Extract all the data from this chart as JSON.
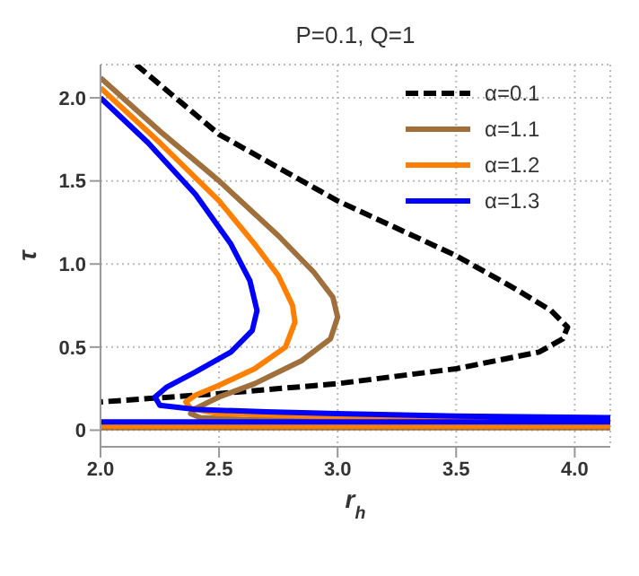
{
  "chart_data": {
    "type": "line",
    "title": "P=0.1, Q=1",
    "xlabel": "r$_{h}$",
    "ylabel": "τ",
    "xlim": [
      2.0,
      4.15
    ],
    "ylim": [
      -0.1,
      2.2
    ],
    "xticks": [
      {
        "value": 2,
        "label": "2.0"
      },
      2.5,
      {
        "value": 3,
        "label": "3.0"
      },
      3.5,
      {
        "value": 4,
        "label": "4.0"
      }
    ],
    "yticks": [
      0,
      0.5,
      {
        "value": 1,
        "label": "1.0"
      },
      1.5,
      {
        "value": 2,
        "label": "2.0"
      }
    ],
    "grid": true,
    "legend": "top right",
    "marker": "none",
    "series": [
      {
        "name": "α=0.1",
        "color": "#000000",
        "line_style": "dashed",
        "x": [
          2.15,
          2.5,
          3.0,
          3.5,
          3.75,
          3.9,
          3.97,
          3.95,
          3.85,
          3.5,
          3.0,
          2.5,
          2.0
        ],
        "values": [
          2.2,
          1.78,
          1.38,
          1.05,
          0.85,
          0.72,
          0.62,
          0.55,
          0.47,
          0.37,
          0.28,
          0.22,
          0.17
        ]
      },
      {
        "name": "α=1.1",
        "color": "#a0703c",
        "line_style": "solid",
        "x": [
          2.0,
          2.25,
          2.5,
          2.75,
          2.9,
          2.98,
          3.0,
          2.97,
          2.85,
          2.65,
          2.5,
          2.4,
          2.38,
          2.42,
          2.6,
          3.0,
          3.5,
          4.15,
          null,
          2.0,
          4.15
        ],
        "values": [
          2.12,
          1.8,
          1.5,
          1.17,
          0.95,
          0.8,
          0.68,
          0.55,
          0.42,
          0.28,
          0.2,
          0.13,
          0.1,
          0.075,
          0.065,
          0.06,
          0.055,
          0.05,
          null,
          0.015,
          0.015
        ]
      },
      {
        "name": "α=1.2",
        "color": "#ff8000",
        "line_style": "solid",
        "x": [
          2.0,
          2.25,
          2.5,
          2.65,
          2.75,
          2.81,
          2.82,
          2.78,
          2.65,
          2.5,
          2.4,
          2.36,
          2.38,
          2.5,
          3.0,
          3.5,
          4.15,
          null,
          2.0,
          4.15
        ],
        "values": [
          2.06,
          1.73,
          1.38,
          1.12,
          0.93,
          0.75,
          0.65,
          0.5,
          0.37,
          0.27,
          0.21,
          0.17,
          0.13,
          0.1,
          0.08,
          0.07,
          0.065,
          null,
          0.025,
          0.025
        ]
      },
      {
        "name": "α=1.3",
        "color": "#0000ff",
        "line_style": "solid",
        "x": [
          2.0,
          2.2,
          2.4,
          2.55,
          2.63,
          2.66,
          2.64,
          2.55,
          2.4,
          2.28,
          2.23,
          2.25,
          2.4,
          2.7,
          3.0,
          3.5,
          4.15,
          null,
          2.0,
          4.15
        ],
        "values": [
          2.0,
          1.73,
          1.42,
          1.12,
          0.9,
          0.72,
          0.6,
          0.47,
          0.35,
          0.26,
          0.2,
          0.15,
          0.125,
          0.11,
          0.1,
          0.085,
          0.075,
          null,
          0.05,
          0.05
        ]
      }
    ]
  }
}
